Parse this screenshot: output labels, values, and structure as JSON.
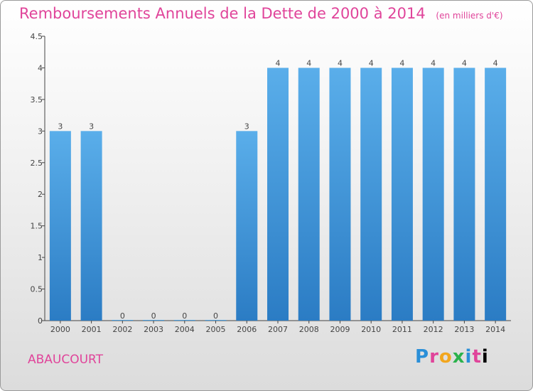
{
  "chart_data": {
    "type": "bar",
    "title": "Remboursements Annuels de la Dette de 2000 à 2014",
    "unit_note": "(en milliers d'€)",
    "categories": [
      "2000",
      "2001",
      "2002",
      "2003",
      "2004",
      "2005",
      "2006",
      "2007",
      "2008",
      "2009",
      "2010",
      "2011",
      "2012",
      "2013",
      "2014"
    ],
    "values": [
      3,
      3,
      0,
      0,
      0,
      0,
      3,
      4,
      4,
      4,
      4,
      4,
      4,
      4,
      4
    ],
    "data_labels": [
      "3",
      "3",
      "0",
      "0",
      "0",
      "0",
      "3",
      "4",
      "4",
      "4",
      "4",
      "4",
      "4",
      "4",
      "4"
    ],
    "ylim": [
      0,
      4.5
    ],
    "yticks": [
      "0",
      "0.5",
      "1",
      "1.5",
      "2",
      "2.5",
      "3",
      "3.5",
      "4",
      "4.5"
    ],
    "ytick_values": [
      0,
      0.5,
      1,
      1.5,
      2,
      2.5,
      3,
      3.5,
      4,
      4.5
    ],
    "grid": false,
    "bar_color": "#4a9fe0"
  },
  "footer": {
    "place": "ABAUCOURT",
    "brand_letters": [
      "P",
      "r",
      "o",
      "x",
      "i",
      "t",
      "i"
    ]
  }
}
